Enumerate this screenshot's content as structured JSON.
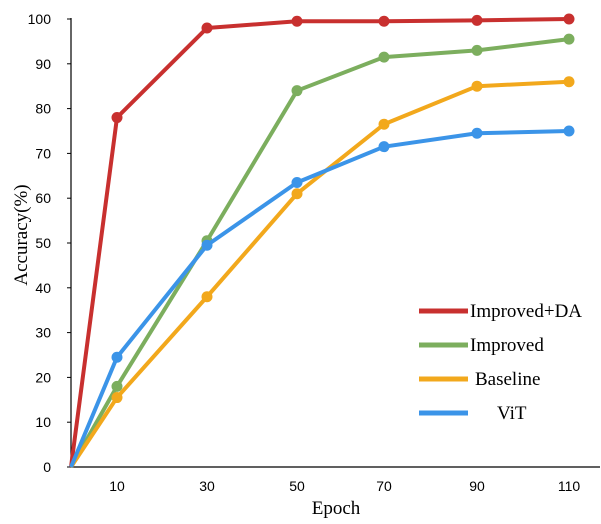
{
  "chart_data": {
    "type": "line",
    "title": "",
    "xlabel": "Epoch",
    "ylabel": "Accuracy(%)",
    "x": [
      0,
      10,
      30,
      50,
      70,
      90,
      110
    ],
    "x_tick_labels": [
      "10",
      "30",
      "50",
      "70",
      "90",
      "110"
    ],
    "y_ticks": [
      0,
      10,
      20,
      30,
      40,
      50,
      60,
      70,
      80,
      90,
      100
    ],
    "ylim": [
      0,
      100
    ],
    "grid": false,
    "legend_position": "bottom-right",
    "series": [
      {
        "name": "Improved+DA",
        "color": "#C8302F",
        "values": [
          0,
          78,
          98,
          99.5,
          99.5,
          99.7,
          100
        ]
      },
      {
        "name": "Improved",
        "color": "#7CAE5E",
        "values": [
          0,
          18,
          50.5,
          84,
          91.5,
          93,
          95.5
        ]
      },
      {
        "name": "Baseline",
        "color": "#F2A81C",
        "values": [
          0,
          15.5,
          38,
          61,
          76.5,
          85,
          86
        ]
      },
      {
        "name": "ViT",
        "color": "#3B94E8",
        "values": [
          0,
          24.5,
          49.5,
          63.5,
          71.5,
          74.5,
          75
        ]
      }
    ]
  }
}
